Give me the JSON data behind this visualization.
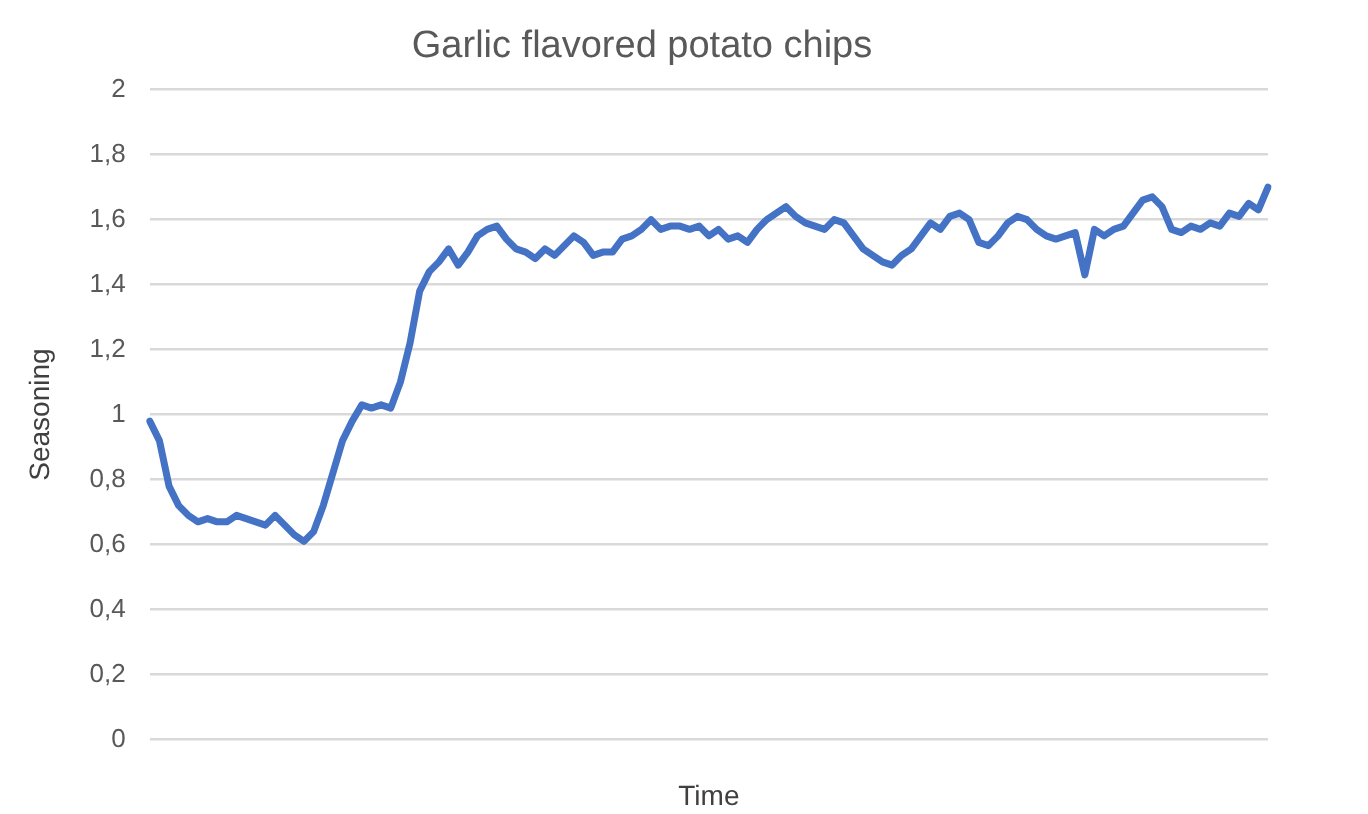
{
  "chart_data": {
    "type": "line",
    "title": "Garlic flavored potato chips",
    "xlabel": "Time",
    "ylabel": "Seasoning",
    "categories": [
      null,
      null,
      null,
      null,
      null,
      null,
      null,
      null,
      null,
      null,
      null,
      null,
      null,
      null,
      null,
      null,
      null,
      null,
      null,
      null,
      null,
      null,
      null,
      null,
      null,
      null,
      null,
      null,
      null,
      null,
      null,
      null,
      null,
      null,
      null,
      null,
      null,
      null,
      null,
      null,
      null,
      null,
      null,
      null,
      null,
      null,
      null,
      null,
      null,
      null,
      null,
      null,
      null,
      null,
      null,
      null,
      null,
      null,
      null,
      null,
      null,
      null,
      null,
      null,
      null,
      null,
      null,
      null,
      null,
      null,
      null,
      null,
      null,
      null,
      null,
      null,
      null,
      null,
      null,
      null,
      null,
      null,
      null,
      null,
      null,
      null,
      null,
      null,
      null,
      null,
      null,
      null,
      null,
      null,
      null,
      null,
      null,
      null,
      null,
      null,
      null,
      null,
      null,
      null,
      null,
      null,
      null,
      null,
      null,
      null,
      null,
      null,
      null,
      null,
      null,
      null,
      null
    ],
    "series": [
      {
        "color": "#4472c4",
        "values": [
          0.98,
          0.92,
          0.78,
          0.72,
          0.69,
          0.67,
          0.68,
          0.67,
          0.67,
          0.69,
          0.68,
          0.67,
          0.66,
          0.69,
          0.66,
          0.63,
          0.61,
          0.64,
          0.72,
          0.82,
          0.92,
          0.98,
          1.03,
          1.02,
          1.03,
          1.02,
          1.1,
          1.22,
          1.38,
          1.44,
          1.47,
          1.51,
          1.46,
          1.5,
          1.55,
          1.57,
          1.58,
          1.54,
          1.51,
          1.5,
          1.48,
          1.51,
          1.49,
          1.52,
          1.55,
          1.53,
          1.49,
          1.5,
          1.5,
          1.54,
          1.55,
          1.57,
          1.6,
          1.57,
          1.58,
          1.58,
          1.57,
          1.58,
          1.55,
          1.57,
          1.54,
          1.55,
          1.53,
          1.57,
          1.6,
          1.62,
          1.64,
          1.61,
          1.59,
          1.58,
          1.57,
          1.6,
          1.59,
          1.55,
          1.51,
          1.49,
          1.47,
          1.46,
          1.49,
          1.51,
          1.55,
          1.59,
          1.57,
          1.61,
          1.62,
          1.6,
          1.53,
          1.52,
          1.55,
          1.59,
          1.61,
          1.6,
          1.57,
          1.55,
          1.54,
          1.55,
          1.56,
          1.43,
          1.57,
          1.55,
          1.57,
          1.58,
          1.62,
          1.66,
          1.67,
          1.64,
          1.57,
          1.56,
          1.58,
          1.57,
          1.59,
          1.58,
          1.62,
          1.61,
          1.65,
          1.63,
          1.7
        ]
      }
    ],
    "ylim": [
      0,
      2
    ],
    "yticks": [
      0,
      {
        "value": 0.2,
        "label": "0,2"
      },
      {
        "value": 0.4,
        "label": "0,4"
      },
      {
        "value": 0.6,
        "label": "0,6"
      },
      {
        "value": 0.8,
        "label": "0,8"
      },
      1,
      {
        "value": 1.2,
        "label": "1,2"
      },
      {
        "value": 1.4,
        "label": "1,4"
      },
      {
        "value": 1.6,
        "label": "1,6"
      },
      {
        "value": 1.8,
        "label": "1,8"
      },
      2
    ],
    "grid": "y",
    "legend": false,
    "marker": "none",
    "line_style": "solid"
  }
}
